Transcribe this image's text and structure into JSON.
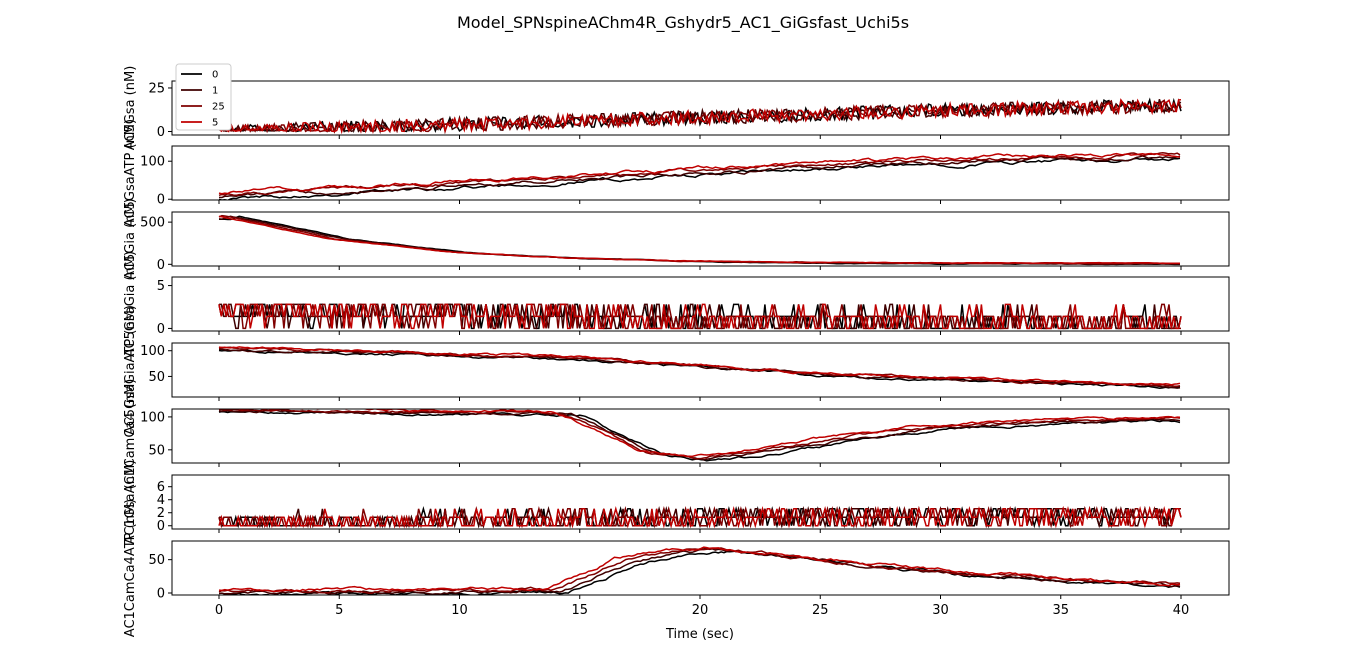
{
  "figure": {
    "title": "Model_SPNspineAChm4R_Gshydr5_AC1_GiGsfast_Uchi5s",
    "xlabel": "Time (sec)"
  },
  "legend": {
    "placement": "upper-left of first panel",
    "entries": [
      {
        "label": "0",
        "color": "#000000"
      },
      {
        "label": "1",
        "color": "#3f0000"
      },
      {
        "label": "25",
        "color": "#7f0000"
      },
      {
        "label": "5",
        "color": "#c00000"
      }
    ]
  },
  "chart_data": [
    {
      "type": "line",
      "ylabel": "AC5Gsa (nM)",
      "x_range": [
        0,
        40
      ],
      "ylim": [
        -2,
        29
      ],
      "yticks": [
        0,
        25
      ],
      "noisy": true,
      "profile_time": [
        0,
        10,
        20,
        30,
        40
      ],
      "profile_values": [
        0,
        4,
        8,
        12,
        15
      ],
      "noise": 4,
      "series_order": [
        "0",
        "1",
        "25",
        "5"
      ],
      "xticks": [
        0,
        5,
        10,
        15,
        20,
        25,
        30,
        35,
        40
      ]
    },
    {
      "type": "line",
      "ylabel": "AC5GsaATP (nM)",
      "x_range": [
        0,
        40
      ],
      "ylim": [
        -2,
        140
      ],
      "yticks": [
        0,
        100
      ],
      "noisy": false,
      "profile_time": [
        0,
        5,
        10,
        15,
        20,
        25,
        30,
        35,
        40
      ],
      "profile_values": [
        10,
        25,
        40,
        55,
        72,
        88,
        100,
        108,
        112
      ],
      "noise": 6,
      "series_order": [
        "0",
        "1",
        "25",
        "5"
      ]
    },
    {
      "type": "line",
      "ylabel": "AC5Gia (nM)",
      "x_range": [
        0,
        40
      ],
      "ylim": [
        -20,
        620
      ],
      "yticks": [
        0,
        500
      ],
      "noisy": false,
      "profile_time": [
        0,
        0.3,
        2,
        5,
        10,
        15,
        20,
        25,
        30,
        40
      ],
      "profile_values": [
        540,
        575,
        480,
        300,
        140,
        70,
        35,
        20,
        12,
        8
      ],
      "noise": 5,
      "series_order": [
        "0",
        "1",
        "25",
        "5"
      ]
    },
    {
      "type": "line",
      "ylabel": "AC5GsaGia (nM)",
      "x_range": [
        0,
        40
      ],
      "ylim": [
        -0.3,
        6.0
      ],
      "yticks": [
        0,
        5
      ],
      "noisy": true,
      "profile_time": [
        0,
        10,
        20,
        30,
        40
      ],
      "profile_values": [
        2,
        1.5,
        1.2,
        0.9,
        0.7
      ],
      "noise": 1.5,
      "series_order": [
        "0",
        "1",
        "25",
        "5"
      ]
    },
    {
      "type": "line",
      "ylabel": "AC5GsaGiaATP (nM)",
      "x_range": [
        0,
        40
      ],
      "ylim": [
        10,
        115
      ],
      "yticks": [
        50,
        100
      ],
      "noisy": false,
      "profile_time": [
        0,
        5,
        10,
        15,
        20,
        25,
        30,
        35,
        40
      ],
      "profile_values": [
        105,
        98,
        92,
        85,
        70,
        55,
        45,
        38,
        32
      ],
      "noise": 3,
      "series_order": [
        "0",
        "1",
        "25",
        "5"
      ]
    },
    {
      "type": "line",
      "ylabel": "AC1CamCa4 (nM)",
      "x_range": [
        0,
        40
      ],
      "ylim": [
        30,
        112
      ],
      "yticks": [
        50,
        100
      ],
      "noisy": false,
      "profile_time": [
        0,
        10,
        14.5,
        16,
        18,
        20,
        23,
        27,
        30,
        35,
        40
      ],
      "profile_values": [
        110,
        107,
        105,
        80,
        45,
        37,
        50,
        72,
        85,
        93,
        97
      ],
      "noise": 2.5,
      "series_order": [
        "0",
        "1",
        "25",
        "5"
      ]
    },
    {
      "type": "line",
      "ylabel": "AC1Gsa (nM)",
      "x_range": [
        0,
        40
      ],
      "ylim": [
        -0.5,
        7.8
      ],
      "yticks": [
        0,
        2,
        4,
        6
      ],
      "noisy": true,
      "profile_time": [
        0,
        10,
        20,
        30,
        40
      ],
      "profile_values": [
        0.3,
        0.8,
        1.2,
        1.5,
        1.5
      ],
      "noise": 1.5,
      "series_order": [
        "0",
        "1",
        "25",
        "5"
      ]
    },
    {
      "type": "line",
      "ylabel": "AC1CamCa4ATP (nM)",
      "x_range": [
        0,
        40
      ],
      "ylim": [
        -3,
        78
      ],
      "yticks": [
        0,
        50
      ],
      "noisy": false,
      "profile_time": [
        0,
        10,
        14,
        15.5,
        17,
        19,
        21,
        25,
        30,
        35,
        40
      ],
      "profile_values": [
        1,
        3,
        4,
        25,
        48,
        62,
        65,
        50,
        32,
        20,
        12
      ],
      "noise": 3,
      "series_order": [
        "0",
        "1",
        "25",
        "5"
      ]
    }
  ]
}
